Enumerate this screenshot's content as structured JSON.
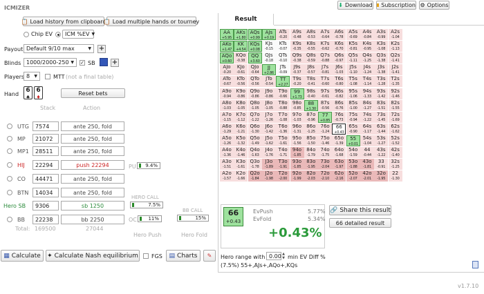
{
  "app": {
    "logo": "ICMIZER",
    "version": "v1.7.10"
  },
  "top": {
    "download": "Download",
    "subscription": "Subscription",
    "options": "Options"
  },
  "left": {
    "load_history": "Load history from clipboard",
    "load_multiple": "Load multiple hands or tourney",
    "chip_ev": "Chip EV",
    "icm_ev": "ICM %EV",
    "payout_label": "Payout",
    "payout_value": "Default 9/10 max",
    "blinds_label": "Blinds",
    "blinds_value": "1000/2000-250",
    "sb_label": "SB",
    "players_label": "Players",
    "players_value": "8",
    "mtt_label": "MTT",
    "mtt_hint": "(not a final table)",
    "hand_label": "Hand",
    "reset_bets": "Reset bets",
    "hand_cards": [
      "6",
      "6"
    ],
    "stack_header": "Stack",
    "action_header": "Action",
    "players": [
      {
        "pos": "UTG",
        "stack": "7574",
        "action": "ante 250, fold"
      },
      {
        "pos": "MP",
        "stack": "21072",
        "action": "ante 250, fold"
      },
      {
        "pos": "MP1",
        "stack": "28511",
        "action": "ante 250, fold"
      },
      {
        "pos": "HIJ",
        "stack": "22294",
        "action": "push 22294"
      },
      {
        "pos": "CO",
        "stack": "44471",
        "action": "ante 250, fold"
      },
      {
        "pos": "BTN",
        "stack": "14034",
        "action": "ante 250, fold"
      },
      {
        "pos": "Hero SB",
        "stack": "9306",
        "action": "sb 1250"
      },
      {
        "pos": "BB",
        "stack": "22238",
        "action": "bb 2250"
      }
    ],
    "total_label": "Total:",
    "total_stack": "169500",
    "total_action": "27044",
    "pu_label": "PU",
    "pu_value": "9.4%",
    "hero_call_label": "HERO CALL",
    "hero_call_value": "7.5%",
    "bb_call_label": "BB CALL",
    "bb_call_value": "15%",
    "oc_label": "OC",
    "oc_value": "11%",
    "hero_push": "Hero Push",
    "hero_fold": "Hero Fold"
  },
  "bottom": {
    "calculate": "Calculate",
    "nash": "Calculate Nash equilibrium",
    "fgs": "FGS",
    "charts": "Charts"
  },
  "result": {
    "tab": "Result",
    "hand": "66",
    "hand_ev": "+0.43",
    "evpush_label": "EvPush",
    "evpush_value": "5.77%",
    "evfold_label": "EvFold",
    "evfold_value": "5.34%",
    "diff": "+0.43%",
    "share": "Share this result",
    "detailed": "66 detailed result",
    "range_prefix": "Hero range with",
    "range_value": "0.00",
    "range_suffix": "min EV Diff %",
    "range_text": "(7.5%) 55+,AJs+,AQo+,KQs"
  },
  "grid": [
    [
      [
        "AA",
        "+5.95"
      ],
      [
        "AKs",
        "+1.80"
      ],
      [
        "AQs",
        "+0.99"
      ],
      [
        "AJs",
        "+0.19"
      ],
      [
        "ATs",
        "-0.20"
      ],
      [
        "A9s",
        "-0.48"
      ],
      [
        "A8s",
        "-0.53"
      ],
      [
        "A7s",
        "-0.64"
      ],
      [
        "A6s",
        "-0.78"
      ],
      [
        "A5s",
        "-0.69"
      ],
      [
        "A4s",
        "-0.84"
      ],
      [
        "A3s",
        "-0.99"
      ],
      [
        "A2s",
        "-1.04"
      ]
    ],
    [
      [
        "AKo",
        "+1.47"
      ],
      [
        "KK",
        "+4.54"
      ],
      [
        "KQs",
        "+0.08"
      ],
      [
        "KJs",
        "-0.15"
      ],
      [
        "KTs",
        "-0.07"
      ],
      [
        "K9s",
        "-0.35"
      ],
      [
        "K8s",
        "-0.55"
      ],
      [
        "K7s",
        "-0.62"
      ],
      [
        "K6s",
        "-0.70"
      ],
      [
        "K5s",
        "-0.81"
      ],
      [
        "K4s",
        "-0.95"
      ],
      [
        "K3s",
        "-1.08"
      ],
      [
        "K2s",
        "-1.13"
      ]
    ],
    [
      [
        "AQo",
        "+0.60"
      ],
      [
        "KQo",
        "-0.38"
      ],
      [
        "QQ",
        "+3.60"
      ],
      [
        "QJs",
        "-0.18"
      ],
      [
        "QTs",
        "-0.10"
      ],
      [
        "Q9s",
        "-0.38"
      ],
      [
        "Q8s",
        "-0.59"
      ],
      [
        "Q7s",
        "-0.88"
      ],
      [
        "Q6s",
        "-0.97"
      ],
      [
        "Q5s",
        "-1.11"
      ],
      [
        "Q4s",
        "-1.25"
      ],
      [
        "Q3s",
        "-1.38"
      ],
      [
        "Q2s",
        "-1.41"
      ]
    ],
    [
      [
        "AJo",
        "-0.20"
      ],
      [
        "KJo",
        "-0.61"
      ],
      [
        "QJo",
        "-0.64"
      ],
      [
        "JJ",
        "+2.86"
      ],
      [
        "JTs",
        "-0.09"
      ],
      [
        "J9s",
        "-0.37"
      ],
      [
        "J8s",
        "-0.57"
      ],
      [
        "J7s",
        "-0.81"
      ],
      [
        "J6s",
        "-1.03"
      ],
      [
        "J5s",
        "-1.10"
      ],
      [
        "J4s",
        "-1.24"
      ],
      [
        "J3s",
        "-1.38"
      ],
      [
        "J2s",
        "-1.41"
      ]
    ],
    [
      [
        "ATo",
        "-0.67"
      ],
      [
        "KTo",
        "-0.56"
      ],
      [
        "QTo",
        "-0.56"
      ],
      [
        "JTo",
        "-0.54"
      ],
      [
        "TT",
        "+2.27"
      ],
      [
        "T9s",
        "-0.20"
      ],
      [
        "T8s",
        "-0.41"
      ],
      [
        "T7s",
        "-0.60"
      ],
      [
        "T6s",
        "-0.80"
      ],
      [
        "T5s",
        "-1.08"
      ],
      [
        "T4s",
        "-1.14"
      ],
      [
        "T3s",
        "-1.28"
      ],
      [
        "T2s",
        "-1.35"
      ]
    ],
    [
      [
        "A9o",
        "-0.94"
      ],
      [
        "K9o",
        "-0.86"
      ],
      [
        "Q9o",
        "-0.86"
      ],
      [
        "J9o",
        "-0.86"
      ],
      [
        "T9o",
        "-0.66"
      ],
      [
        "99",
        "+1.73"
      ],
      [
        "98s",
        "-0.40"
      ],
      [
        "97s",
        "-0.61"
      ],
      [
        "96s",
        "-0.82"
      ],
      [
        "95s",
        "-1.06"
      ],
      [
        "94s",
        "-1.33"
      ],
      [
        "93s",
        "-1.42"
      ],
      [
        "92s",
        "-1.46"
      ]
    ],
    [
      [
        "A8o",
        "-1.03"
      ],
      [
        "K8o",
        "-1.05"
      ],
      [
        "Q8o",
        "-1.05"
      ],
      [
        "J8o",
        "-1.05"
      ],
      [
        "T8o",
        "-0.88"
      ],
      [
        "98o",
        "-0.85"
      ],
      [
        "88",
        "+1.30"
      ],
      [
        "87s",
        "-0.56"
      ],
      [
        "86s",
        "-0.76"
      ],
      [
        "85s",
        "-1.00"
      ],
      [
        "84s",
        "-1.27"
      ],
      [
        "83s",
        "-1.51"
      ],
      [
        "82s",
        "-1.55"
      ]
    ],
    [
      [
        "A7o",
        "-1.15"
      ],
      [
        "K7o",
        "-1.12"
      ],
      [
        "Q7o",
        "-1.22"
      ],
      [
        "J7o",
        "-1.26"
      ],
      [
        "T7o",
        "-1.08"
      ],
      [
        "97o",
        "-1.03"
      ],
      [
        "87o",
        "-0.96"
      ],
      [
        "77",
        "+0.85"
      ],
      [
        "76s",
        "-0.73"
      ],
      [
        "75s",
        "-0.94"
      ],
      [
        "74s",
        "-1.22"
      ],
      [
        "73s",
        "-1.45"
      ],
      [
        "72s",
        "-1.69"
      ]
    ],
    [
      [
        "A6o",
        "-1.29"
      ],
      [
        "K6o",
        "-1.21"
      ],
      [
        "Q6o",
        "-1.30"
      ],
      [
        "J6o",
        "-1.42"
      ],
      [
        "T6o",
        "-1.36"
      ],
      [
        "96o",
        "-1.31"
      ],
      [
        "86o",
        "-1.25"
      ],
      [
        "76o",
        "-1.24"
      ],
      [
        "66",
        "+0.43"
      ],
      [
        "65s",
        "-0.90"
      ],
      [
        "64s",
        "-1.17"
      ],
      [
        "63s",
        "-1.44"
      ],
      [
        "62s",
        "-1.62"
      ]
    ],
    [
      [
        "A5o",
        "-1.26"
      ],
      [
        "K5o",
        "-1.32"
      ],
      [
        "Q5o",
        "-1.49"
      ],
      [
        "J5o",
        "-1.62"
      ],
      [
        "T5o",
        "-1.61"
      ],
      [
        "95o",
        "-1.56"
      ],
      [
        "85o",
        "-1.50"
      ],
      [
        "75o",
        "-1.46"
      ],
      [
        "65o",
        "-1.39"
      ],
      [
        "55",
        "+0.01"
      ],
      [
        "54s",
        "-1.04"
      ],
      [
        "53s",
        "-1.27"
      ],
      [
        "52s",
        "-1.52"
      ]
    ],
    [
      [
        "A4o",
        "-1.36"
      ],
      [
        "K4o",
        "-1.46"
      ],
      [
        "Q4o",
        "-1.63"
      ],
      [
        "J4o",
        "-1.76"
      ],
      [
        "T4o",
        "-1.71"
      ],
      [
        "94o",
        "-1.85"
      ],
      [
        "84o",
        "-1.79"
      ],
      [
        "74o",
        "-1.75"
      ],
      [
        "64o",
        "-1.68"
      ],
      [
        "54o",
        "-1.59"
      ],
      [
        "44",
        "-0.44"
      ],
      [
        "43s",
        "-1.22"
      ],
      [
        "42s",
        "-1.40"
      ]
    ],
    [
      [
        "A3o",
        "-1.51"
      ],
      [
        "K3o",
        "-1.61"
      ],
      [
        "Q3o",
        "-1.78"
      ],
      [
        "J3o",
        "-1.89"
      ],
      [
        "T3o",
        "-1.91"
      ],
      [
        "93o",
        "-1.85"
      ],
      [
        "83o",
        "-1.95"
      ],
      [
        "73o",
        "-2.04"
      ],
      [
        "63o",
        "-1.97"
      ],
      [
        "53o",
        "-1.88"
      ],
      [
        "43o",
        "-1.81"
      ],
      [
        "33",
        "-0.91"
      ],
      [
        "32s",
        "-1.25"
      ]
    ],
    [
      [
        "A2o",
        "-1.57"
      ],
      [
        "K2o",
        "-1.66"
      ],
      [
        "Q2o",
        "-1.84"
      ],
      [
        "J2o",
        "-1.98"
      ],
      [
        "T2o",
        "-2.00"
      ],
      [
        "92o",
        "-1.99"
      ],
      [
        "82o",
        "-2.03"
      ],
      [
        "72o",
        "-2.10"
      ],
      [
        "62o",
        "-2.16"
      ],
      [
        "52o",
        "-2.07"
      ],
      [
        "42o",
        "-2.01"
      ],
      [
        "32o",
        "-1.95"
      ],
      [
        "22",
        "-1.30"
      ]
    ]
  ]
}
